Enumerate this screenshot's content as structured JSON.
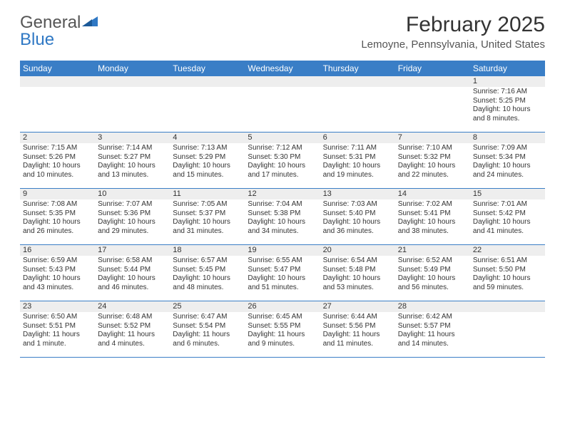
{
  "logo": {
    "text1": "General",
    "text2": "Blue"
  },
  "title": "February 2025",
  "location": "Lemoyne, Pennsylvania, United States",
  "colors": {
    "header_bg": "#3a7ec6",
    "header_fg": "#ffffff",
    "daynum_bg": "#eeeeee",
    "rule": "#3a7ec6",
    "text": "#333333"
  },
  "weekdays": [
    "Sunday",
    "Monday",
    "Tuesday",
    "Wednesday",
    "Thursday",
    "Friday",
    "Saturday"
  ],
  "weeks": [
    [
      {
        "n": "",
        "empty": true
      },
      {
        "n": "",
        "empty": true
      },
      {
        "n": "",
        "empty": true
      },
      {
        "n": "",
        "empty": true
      },
      {
        "n": "",
        "empty": true
      },
      {
        "n": "",
        "empty": true
      },
      {
        "n": "1",
        "sr": "Sunrise: 7:16 AM",
        "ss": "Sunset: 5:25 PM",
        "dl": "Daylight: 10 hours and 8 minutes."
      }
    ],
    [
      {
        "n": "2",
        "sr": "Sunrise: 7:15 AM",
        "ss": "Sunset: 5:26 PM",
        "dl": "Daylight: 10 hours and 10 minutes."
      },
      {
        "n": "3",
        "sr": "Sunrise: 7:14 AM",
        "ss": "Sunset: 5:27 PM",
        "dl": "Daylight: 10 hours and 13 minutes."
      },
      {
        "n": "4",
        "sr": "Sunrise: 7:13 AM",
        "ss": "Sunset: 5:29 PM",
        "dl": "Daylight: 10 hours and 15 minutes."
      },
      {
        "n": "5",
        "sr": "Sunrise: 7:12 AM",
        "ss": "Sunset: 5:30 PM",
        "dl": "Daylight: 10 hours and 17 minutes."
      },
      {
        "n": "6",
        "sr": "Sunrise: 7:11 AM",
        "ss": "Sunset: 5:31 PM",
        "dl": "Daylight: 10 hours and 19 minutes."
      },
      {
        "n": "7",
        "sr": "Sunrise: 7:10 AM",
        "ss": "Sunset: 5:32 PM",
        "dl": "Daylight: 10 hours and 22 minutes."
      },
      {
        "n": "8",
        "sr": "Sunrise: 7:09 AM",
        "ss": "Sunset: 5:34 PM",
        "dl": "Daylight: 10 hours and 24 minutes."
      }
    ],
    [
      {
        "n": "9",
        "sr": "Sunrise: 7:08 AM",
        "ss": "Sunset: 5:35 PM",
        "dl": "Daylight: 10 hours and 26 minutes."
      },
      {
        "n": "10",
        "sr": "Sunrise: 7:07 AM",
        "ss": "Sunset: 5:36 PM",
        "dl": "Daylight: 10 hours and 29 minutes."
      },
      {
        "n": "11",
        "sr": "Sunrise: 7:05 AM",
        "ss": "Sunset: 5:37 PM",
        "dl": "Daylight: 10 hours and 31 minutes."
      },
      {
        "n": "12",
        "sr": "Sunrise: 7:04 AM",
        "ss": "Sunset: 5:38 PM",
        "dl": "Daylight: 10 hours and 34 minutes."
      },
      {
        "n": "13",
        "sr": "Sunrise: 7:03 AM",
        "ss": "Sunset: 5:40 PM",
        "dl": "Daylight: 10 hours and 36 minutes."
      },
      {
        "n": "14",
        "sr": "Sunrise: 7:02 AM",
        "ss": "Sunset: 5:41 PM",
        "dl": "Daylight: 10 hours and 38 minutes."
      },
      {
        "n": "15",
        "sr": "Sunrise: 7:01 AM",
        "ss": "Sunset: 5:42 PM",
        "dl": "Daylight: 10 hours and 41 minutes."
      }
    ],
    [
      {
        "n": "16",
        "sr": "Sunrise: 6:59 AM",
        "ss": "Sunset: 5:43 PM",
        "dl": "Daylight: 10 hours and 43 minutes."
      },
      {
        "n": "17",
        "sr": "Sunrise: 6:58 AM",
        "ss": "Sunset: 5:44 PM",
        "dl": "Daylight: 10 hours and 46 minutes."
      },
      {
        "n": "18",
        "sr": "Sunrise: 6:57 AM",
        "ss": "Sunset: 5:45 PM",
        "dl": "Daylight: 10 hours and 48 minutes."
      },
      {
        "n": "19",
        "sr": "Sunrise: 6:55 AM",
        "ss": "Sunset: 5:47 PM",
        "dl": "Daylight: 10 hours and 51 minutes."
      },
      {
        "n": "20",
        "sr": "Sunrise: 6:54 AM",
        "ss": "Sunset: 5:48 PM",
        "dl": "Daylight: 10 hours and 53 minutes."
      },
      {
        "n": "21",
        "sr": "Sunrise: 6:52 AM",
        "ss": "Sunset: 5:49 PM",
        "dl": "Daylight: 10 hours and 56 minutes."
      },
      {
        "n": "22",
        "sr": "Sunrise: 6:51 AM",
        "ss": "Sunset: 5:50 PM",
        "dl": "Daylight: 10 hours and 59 minutes."
      }
    ],
    [
      {
        "n": "23",
        "sr": "Sunrise: 6:50 AM",
        "ss": "Sunset: 5:51 PM",
        "dl": "Daylight: 11 hours and 1 minute."
      },
      {
        "n": "24",
        "sr": "Sunrise: 6:48 AM",
        "ss": "Sunset: 5:52 PM",
        "dl": "Daylight: 11 hours and 4 minutes."
      },
      {
        "n": "25",
        "sr": "Sunrise: 6:47 AM",
        "ss": "Sunset: 5:54 PM",
        "dl": "Daylight: 11 hours and 6 minutes."
      },
      {
        "n": "26",
        "sr": "Sunrise: 6:45 AM",
        "ss": "Sunset: 5:55 PM",
        "dl": "Daylight: 11 hours and 9 minutes."
      },
      {
        "n": "27",
        "sr": "Sunrise: 6:44 AM",
        "ss": "Sunset: 5:56 PM",
        "dl": "Daylight: 11 hours and 11 minutes."
      },
      {
        "n": "28",
        "sr": "Sunrise: 6:42 AM",
        "ss": "Sunset: 5:57 PM",
        "dl": "Daylight: 11 hours and 14 minutes."
      },
      {
        "n": "",
        "empty": true
      }
    ]
  ]
}
